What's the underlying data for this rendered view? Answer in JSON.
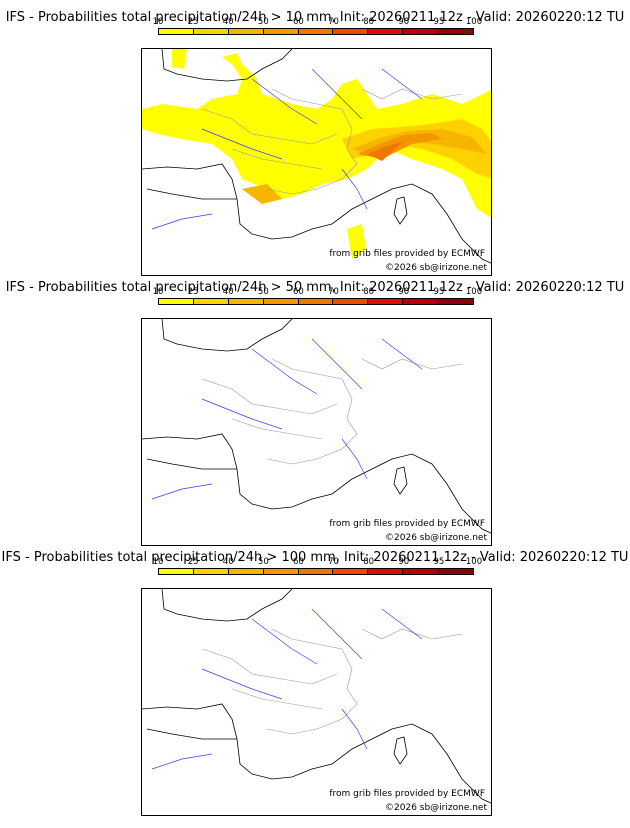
{
  "scale": {
    "labels": [
      "10",
      "25",
      "40",
      "50",
      "60",
      "70",
      "80",
      "90",
      "95",
      "100"
    ],
    "colors": [
      "#ffff00",
      "#ffd100",
      "#f7b500",
      "#f49600",
      "#ef7700",
      "#e94b00",
      "#d91000",
      "#b80000",
      "#8f0000"
    ]
  },
  "panels": [
    {
      "title": "IFS - Probabilities total precipitation/24h > 10 mm, Init: 20260211 12z - Valid: 20260220:12 TU",
      "source_credit": "from grib files provided by ECMWF",
      "copyright": "©2026 sb@irizone.net"
    },
    {
      "title": "IFS - Probabilities total precipitation/24h > 50 mm, Init: 20260211 12z - Valid: 20260220:12 TU",
      "source_credit": "from grib files provided by ECMWF",
      "copyright": "©2026 sb@irizone.net"
    },
    {
      "title": "IFS - Probabilities total precipitation/24h > 100 mm, Init: 20260211 12z - Valid: 20260220:12 TU",
      "source_credit": "from grib files provided by ECMWF",
      "copyright": "©2026 sb@irizone.net"
    }
  ]
}
